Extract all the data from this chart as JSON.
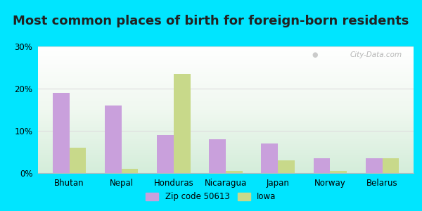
{
  "title": "Most common places of birth for foreign-born residents",
  "categories": [
    "Bhutan",
    "Nepal",
    "Honduras",
    "Nicaragua",
    "Japan",
    "Norway",
    "Belarus"
  ],
  "zip_values": [
    19.0,
    16.0,
    9.0,
    8.0,
    7.0,
    3.5,
    3.5
  ],
  "iowa_values": [
    6.0,
    1.0,
    23.5,
    0.5,
    3.0,
    0.5,
    3.5
  ],
  "zip_color": "#c9a0dc",
  "iowa_color": "#c8d98a",
  "zip_label": "Zip code 50613",
  "iowa_label": "Iowa",
  "ylim": [
    0,
    30
  ],
  "yticks": [
    0,
    10,
    20,
    30
  ],
  "ytick_labels": [
    "0%",
    "10%",
    "20%",
    "30%"
  ],
  "outer_background": "#00e5ff",
  "title_fontsize": 13,
  "watermark": "City-Data.com"
}
